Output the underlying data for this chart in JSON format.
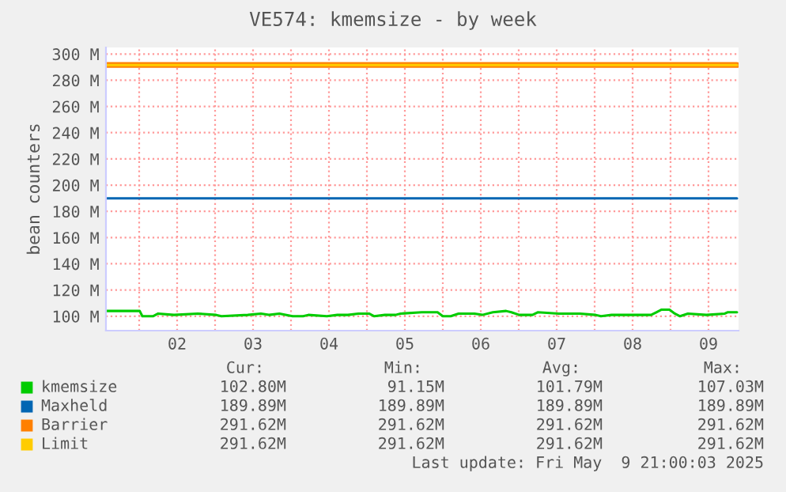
{
  "chart_data": {
    "type": "line",
    "title": "VE574: kmemsize - by week",
    "ylabel": "bean counters",
    "xlim": [
      "2025-05-01T13:30",
      "2025-05-09T21:30"
    ],
    "xticks": [
      {
        "value": "2025-05-02T12:00",
        "label": "02"
      },
      {
        "value": "2025-05-03T12:00",
        "label": "03"
      },
      {
        "value": "2025-05-04T12:00",
        "label": "04"
      },
      {
        "value": "2025-05-05T12:00",
        "label": "05"
      },
      {
        "value": "2025-05-06T12:00",
        "label": "06"
      },
      {
        "value": "2025-05-07T12:00",
        "label": "07"
      },
      {
        "value": "2025-05-08T12:00",
        "label": "08"
      },
      {
        "value": "2025-05-09T12:00",
        "label": "09"
      },
      {
        "value": "2025-05-02T00:00",
        "label": null
      },
      {
        "value": "2025-05-03T00:00",
        "label": null
      },
      {
        "value": "2025-05-04T00:00",
        "label": null
      },
      {
        "value": "2025-05-05T00:00",
        "label": null
      },
      {
        "value": "2025-05-06T00:00",
        "label": null
      },
      {
        "value": "2025-05-07T00:00",
        "label": null
      },
      {
        "value": "2025-05-08T00:00",
        "label": null
      },
      {
        "value": "2025-05-09T00:00",
        "label": null
      }
    ],
    "ylim": [
      89,
      305
    ],
    "yticks": [
      {
        "value": 100,
        "label": "100 M"
      },
      {
        "value": 120,
        "label": "120 M"
      },
      {
        "value": 140,
        "label": "140 M"
      },
      {
        "value": 160,
        "label": "160 M"
      },
      {
        "value": 180,
        "label": "180 M"
      },
      {
        "value": 200,
        "label": "200 M"
      },
      {
        "value": 220,
        "label": "220 M"
      },
      {
        "value": 240,
        "label": "240 M"
      },
      {
        "value": 260,
        "label": "260 M"
      },
      {
        "value": 280,
        "label": "280 M"
      },
      {
        "value": 300,
        "label": "300 M"
      }
    ],
    "grid": true,
    "legend": "bottom",
    "series": [
      {
        "name": "kmemsize",
        "color": "#00cc00",
        "x": [
          "2025-05-01T13:30",
          "2025-05-02T00:10",
          "2025-05-02T01:00",
          "2025-05-02T04:20",
          "2025-05-02T06:00",
          "2025-05-02T11:00",
          "2025-05-02T18:30",
          "2025-05-03T00:20",
          "2025-05-03T02:00",
          "2025-05-03T10:20",
          "2025-05-03T14:30",
          "2025-05-03T17:00",
          "2025-05-03T20:20",
          "2025-05-04T00:30",
          "2025-05-04T03:50",
          "2025-05-04T05:30",
          "2025-05-04T11:20",
          "2025-05-04T14:40",
          "2025-05-04T18:00",
          "2025-05-04T21:20",
          "2025-05-05T00:40",
          "2025-05-05T02:20",
          "2025-05-05T05:40",
          "2025-05-05T09:00",
          "2025-05-05T10:40",
          "2025-05-05T17:20",
          "2025-05-05T22:20",
          "2025-05-06T00:00",
          "2025-05-06T02:30",
          "2025-05-06T05:00",
          "2025-05-06T10:00",
          "2025-05-06T12:30",
          "2025-05-06T15:50",
          "2025-05-06T20:00",
          "2025-05-06T21:40",
          "2025-05-07T00:10",
          "2025-05-07T04:20",
          "2025-05-07T06:00",
          "2025-05-07T12:40",
          "2025-05-07T19:20",
          "2025-05-08T00:20",
          "2025-05-08T02:00",
          "2025-05-08T05:20",
          "2025-05-08T12:00",
          "2025-05-08T17:50",
          "2025-05-08T19:30",
          "2025-05-08T21:10",
          "2025-05-08T23:40",
          "2025-05-09T01:20",
          "2025-05-09T03:00",
          "2025-05-09T05:30",
          "2025-05-09T11:20",
          "2025-05-09T17:10",
          "2025-05-09T18:00",
          "2025-05-09T21:00"
        ],
        "values": [
          104,
          104,
          100,
          100,
          102,
          101,
          102,
          101,
          100,
          101,
          102,
          101,
          102,
          100,
          100,
          101,
          100,
          101,
          101,
          102,
          102,
          100,
          101,
          101,
          102,
          103,
          103,
          100,
          100,
          102,
          102,
          101,
          103,
          104,
          103,
          101,
          101,
          103,
          102,
          102,
          101,
          100,
          101,
          101,
          101,
          103,
          105,
          105,
          102,
          100,
          102,
          101,
          102,
          103,
          103
        ]
      },
      {
        "name": "Maxheld",
        "color": "#0066b3",
        "x": [
          "2025-05-01T13:30",
          "2025-05-09T21:00"
        ],
        "values": [
          189.89,
          189.89
        ]
      },
      {
        "name": "Barrier",
        "color": "#ff8000",
        "x": [
          "2025-05-01T13:30",
          "2025-05-09T21:00"
        ],
        "values": [
          291.62,
          291.62
        ]
      },
      {
        "name": "Limit",
        "color": "#ffcc00",
        "x": [
          "2025-05-01T13:30",
          "2025-05-09T21:00"
        ],
        "values": [
          291.62,
          291.62
        ]
      }
    ],
    "annotations": [
      "Cur:",
      "Min:",
      "Avg:",
      "Max:",
      "102.80M",
      "91.15M",
      "101.79M",
      "107.03M",
      "189.89M",
      "189.89M",
      "189.89M",
      "189.89M",
      "291.62M",
      "291.62M",
      "291.62M",
      "291.62M",
      "291.62M",
      "291.62M",
      "291.62M",
      "291.62M",
      "Last update: Fri May  9 21:00:03 2025"
    ]
  }
}
